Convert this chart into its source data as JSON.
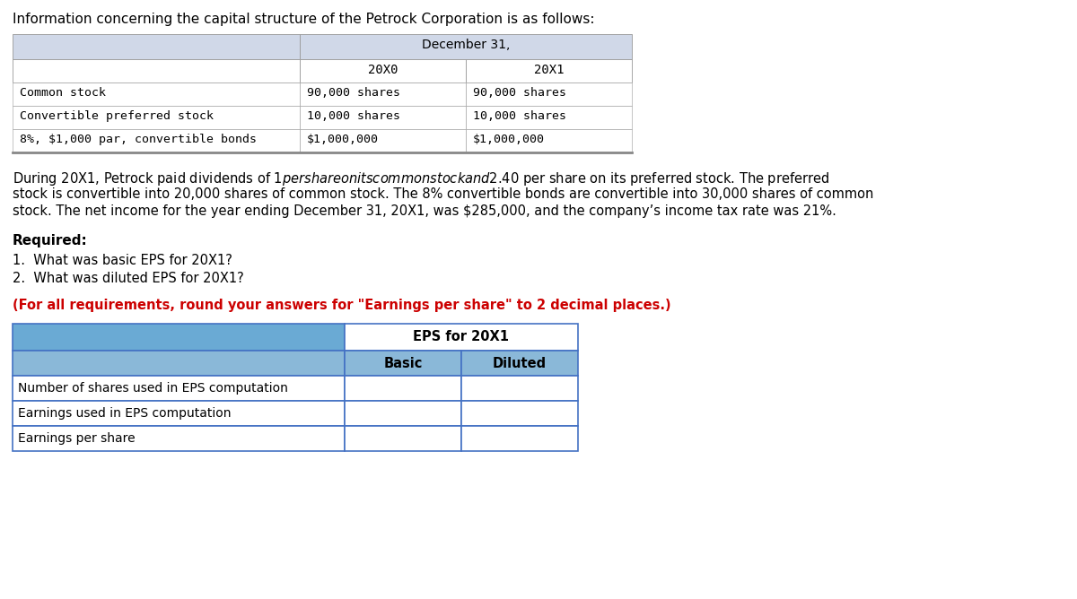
{
  "title_line": "Information concerning the capital structure of the Petrock Corporation is as follows:",
  "table1_header_center": "December 31,",
  "table1_col2_header": "20X0",
  "table1_col3_header": "20X1",
  "table1_rows": [
    [
      "Common stock",
      "90,000 shares",
      "90,000 shares"
    ],
    [
      "Convertible preferred stock",
      "10,000 shares",
      "10,000 shares"
    ],
    [
      "8%, $1,000 par, convertible bonds",
      "$1,000,000",
      "$1,000,000"
    ]
  ],
  "para_lines": [
    "During 20X1, Petrock paid dividends of $1 per share on its common stock and $2.40 per share on its preferred stock. The preferred",
    "stock is convertible into 20,000 shares of common stock. The 8% convertible bonds are convertible into 30,000 shares of common",
    "stock. The net income for the year ending December 31, 20X1, was $285,000, and the company’s income tax rate was 21%."
  ],
  "required_label": "Required:",
  "questions": [
    "1.  What was basic EPS for 20X1?",
    "2.  What was diluted EPS for 20X1?"
  ],
  "note": "(For all requirements, round your answers for \"Earnings per share\" to 2 decimal places.)",
  "table2_title": "EPS for 20X1",
  "table2_col_headers": [
    "Basic",
    "Diluted"
  ],
  "table2_rows": [
    "Number of shares used in EPS computation",
    "Earnings used in EPS computation",
    "Earnings per share"
  ],
  "table1_header_bg": "#d0d8e8",
  "table1_subrow_bg": "#e8ecf4",
  "table2_title_bg": "#6aaad4",
  "table2_col_bg": "#8ab8d8",
  "table2_left_title_bg": "#6aaad4",
  "table2_left_col_bg": "#8ab8d8",
  "note_color": "#cc0000",
  "border_color_t1": "#999999",
  "border_color_t2": "#4472c4",
  "monospace_font": "monospace",
  "normal_font": "DejaVu Sans"
}
